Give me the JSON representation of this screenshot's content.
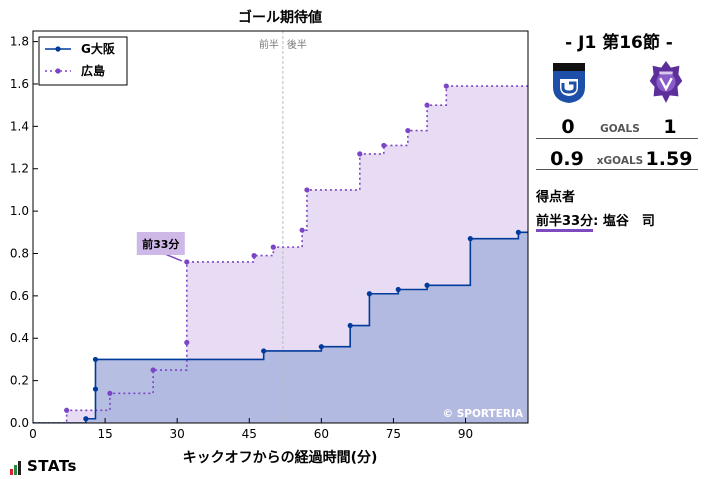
{
  "colors": {
    "gamba": "#003a9b",
    "hiroshima": "#7b45c6",
    "gamba_fill": "#a9b4dd",
    "hiroshima_fill": "#e3d6f1"
  },
  "chart_data": {
    "type": "line",
    "title": "ゴール期待値",
    "xlabel": "キックオフからの経過時間(分)",
    "ylabel": "",
    "xlim": [
      0,
      103
    ],
    "ylim": [
      0,
      1.85
    ],
    "xticks": [
      0,
      15,
      30,
      45,
      60,
      75,
      90
    ],
    "yticks": [
      0.0,
      0.2,
      0.4,
      0.6,
      0.8,
      1.0,
      1.2,
      1.4,
      1.6,
      1.8
    ],
    "ytick_labels": [
      "0.0",
      "0.2",
      "0.4",
      "0.6",
      "0.8",
      "1.0",
      "1.2",
      "1.4",
      "1.6",
      "1.8"
    ],
    "half_line": {
      "x": 52,
      "labels": [
        "前半",
        "後半"
      ]
    },
    "legend_position": "top-left",
    "step": true,
    "end_x": 103,
    "series": [
      {
        "name": "G大阪",
        "style": "solid",
        "x": [
          11,
          13,
          13,
          48,
          60,
          66,
          70,
          76,
          82,
          91,
          101
        ],
        "y": [
          0.02,
          0.16,
          0.3,
          0.34,
          0.36,
          0.46,
          0.61,
          0.63,
          0.65,
          0.87,
          0.9
        ]
      },
      {
        "name": "広島",
        "style": "dotted",
        "x": [
          7,
          16,
          25,
          32,
          32,
          46,
          50,
          56,
          57,
          68,
          73,
          78,
          82,
          86
        ],
        "y": [
          0.06,
          0.14,
          0.25,
          0.38,
          0.76,
          0.79,
          0.83,
          0.91,
          1.1,
          1.27,
          1.31,
          1.38,
          1.5,
          1.59
        ]
      }
    ],
    "annotation": {
      "label": "前33分",
      "x": 32,
      "y": 0.76
    },
    "watermark": "© SPORTERIA"
  },
  "match": {
    "title": "- J1 第16節 -",
    "home_goals": "0",
    "away_goals": "1",
    "goals_label": "GOALS",
    "home_xg": "0.9",
    "away_xg": "1.59",
    "xg_label": "xGOALS",
    "scorers_title": "得点者",
    "scorer_time": "前半33分",
    "scorer_name": ": 塩谷　司"
  },
  "brand": {
    "logo_text": "STATs"
  }
}
